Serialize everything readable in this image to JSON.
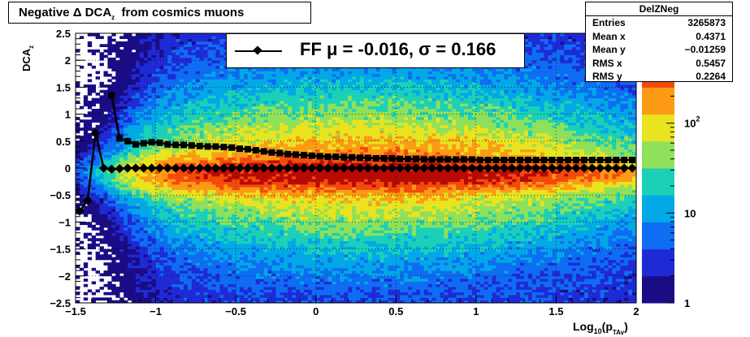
{
  "title": "Negative Δ DCA_z from cosmics muons",
  "stats_box": {
    "name": "DelZNeg",
    "rows": [
      {
        "label": "Entries",
        "value": "3265873"
      },
      {
        "label": "Mean x",
        "value": "0.4371"
      },
      {
        "label": "Mean y",
        "value": "−0.01259"
      },
      {
        "label": "RMS x",
        "value": "0.5457"
      },
      {
        "label": "RMS y",
        "value": "0.2264"
      }
    ]
  },
  "legend_text": "FF μ = -0.016, σ =   0.166",
  "colors": {
    "marker": "#000000",
    "frame": "#000000"
  },
  "chart_data": {
    "type": "heatmap",
    "title": "Negative Δ DCA_z from cosmics muons",
    "xlabel": "Log10(pTAv)",
    "ylabel": "DCAz",
    "xlim": [
      -1.5,
      2
    ],
    "ylim": [
      -2.5,
      2.5
    ],
    "x_ticks": [
      -1.5,
      -1,
      -0.5,
      0,
      0.5,
      1,
      1.5,
      2
    ],
    "x_tick_labels": [
      "−1.5",
      "−1",
      "−0.5",
      "0",
      "0.5",
      "1",
      "1.5",
      "2"
    ],
    "y_ticks": [
      -2.5,
      -2,
      -1.5,
      -1,
      -0.5,
      0,
      0.5,
      1,
      1.5,
      2,
      2.5
    ],
    "y_tick_labels": [
      "−2.5",
      "−2",
      "−1.5",
      "−1",
      "−0.5",
      "0",
      "0.5",
      "1",
      "1.5",
      "2",
      "2.5"
    ],
    "grid": true,
    "z_scale": "log",
    "zlim": [
      1,
      1000
    ],
    "z_tick_labels": [
      "1",
      "10",
      "10^2"
    ],
    "colormap": [
      "#1a0c85",
      "#1f2ad6",
      "#0e6df2",
      "#03a8e6",
      "#1cd0b8",
      "#8fe05a",
      "#e9e320",
      "#fd9a16",
      "#f34a0c",
      "#b80a05"
    ],
    "mean_markers": {
      "style": "diamond",
      "x": [
        -1.475,
        -1.425,
        -1.375,
        -1.325,
        -1.275,
        -1.225,
        -1.175,
        -1.125,
        -1.075,
        -1.025,
        -0.975,
        -0.925,
        -0.875,
        -0.825,
        -0.775,
        -0.725,
        -0.675,
        -0.625,
        -0.575,
        -0.525,
        -0.475,
        -0.425,
        -0.375,
        -0.325,
        -0.275,
        -0.225,
        -0.175,
        -0.125,
        -0.075,
        -0.025,
        0.025,
        0.075,
        0.125,
        0.175,
        0.225,
        0.275,
        0.325,
        0.375,
        0.425,
        0.475,
        0.525,
        0.575,
        0.625,
        0.675,
        0.725,
        0.775,
        0.825,
        0.875,
        0.925,
        0.975,
        1.025,
        1.075,
        1.125,
        1.175,
        1.225,
        1.275,
        1.325,
        1.375,
        1.425,
        1.475,
        1.525,
        1.575,
        1.625,
        1.675,
        1.725,
        1.775,
        1.825,
        1.875,
        1.925,
        1.975
      ],
      "y": [
        -0.8,
        -0.6,
        0.65,
        0.0,
        -0.02,
        -0.01,
        0.0,
        0.0,
        0.0,
        0.0,
        0.0,
        0.0,
        0.0,
        0.0,
        0.0,
        0.0,
        0.0,
        0.0,
        0.0,
        0.0,
        0.0,
        0.0,
        0.0,
        0.0,
        0.0,
        0.0,
        0.0,
        0.0,
        0.0,
        0.0,
        0.0,
        0.0,
        0.0,
        0.0,
        0.0,
        0.0,
        0.0,
        0.0,
        0.0,
        0.0,
        0.0,
        0.0,
        0.0,
        0.0,
        0.0,
        0.0,
        0.0,
        0.0,
        0.0,
        0.0,
        0.0,
        0.0,
        0.0,
        0.0,
        0.0,
        0.0,
        0.0,
        0.0,
        0.0,
        0.0,
        0.0,
        0.0,
        0.0,
        0.0,
        0.0,
        0.0,
        0.0,
        0.0,
        0.0,
        0.0
      ]
    },
    "rms_markers": {
      "style": "square",
      "x": [
        -1.275,
        -1.225,
        -1.175,
        -1.125,
        -1.075,
        -1.025,
        -0.975,
        -0.925,
        -0.875,
        -0.825,
        -0.775,
        -0.725,
        -0.675,
        -0.625,
        -0.575,
        -0.525,
        -0.475,
        -0.425,
        -0.375,
        -0.325,
        -0.275,
        -0.225,
        -0.175,
        -0.125,
        -0.075,
        -0.025,
        0.025,
        0.075,
        0.125,
        0.175,
        0.225,
        0.275,
        0.325,
        0.375,
        0.425,
        0.475,
        0.525,
        0.575,
        0.625,
        0.675,
        0.725,
        0.775,
        0.825,
        0.875,
        0.925,
        0.975,
        1.025,
        1.075,
        1.125,
        1.175,
        1.225,
        1.275,
        1.325,
        1.375,
        1.425,
        1.475,
        1.525,
        1.575,
        1.625,
        1.675,
        1.725,
        1.775,
        1.825,
        1.875,
        1.925,
        1.975
      ],
      "y": [
        1.35,
        0.55,
        0.5,
        0.44,
        0.46,
        0.48,
        0.47,
        0.44,
        0.43,
        0.43,
        0.42,
        0.41,
        0.4,
        0.4,
        0.39,
        0.38,
        0.36,
        0.35,
        0.33,
        0.31,
        0.29,
        0.28,
        0.26,
        0.25,
        0.24,
        0.23,
        0.22,
        0.21,
        0.21,
        0.2,
        0.2,
        0.19,
        0.19,
        0.18,
        0.18,
        0.18,
        0.17,
        0.17,
        0.17,
        0.16,
        0.16,
        0.16,
        0.16,
        0.16,
        0.16,
        0.16,
        0.15,
        0.15,
        0.15,
        0.15,
        0.15,
        0.15,
        0.15,
        0.15,
        0.15,
        0.15,
        0.15,
        0.15,
        0.15,
        0.15,
        0.15,
        0.15,
        0.15,
        0.15,
        0.15,
        0.15
      ]
    }
  }
}
